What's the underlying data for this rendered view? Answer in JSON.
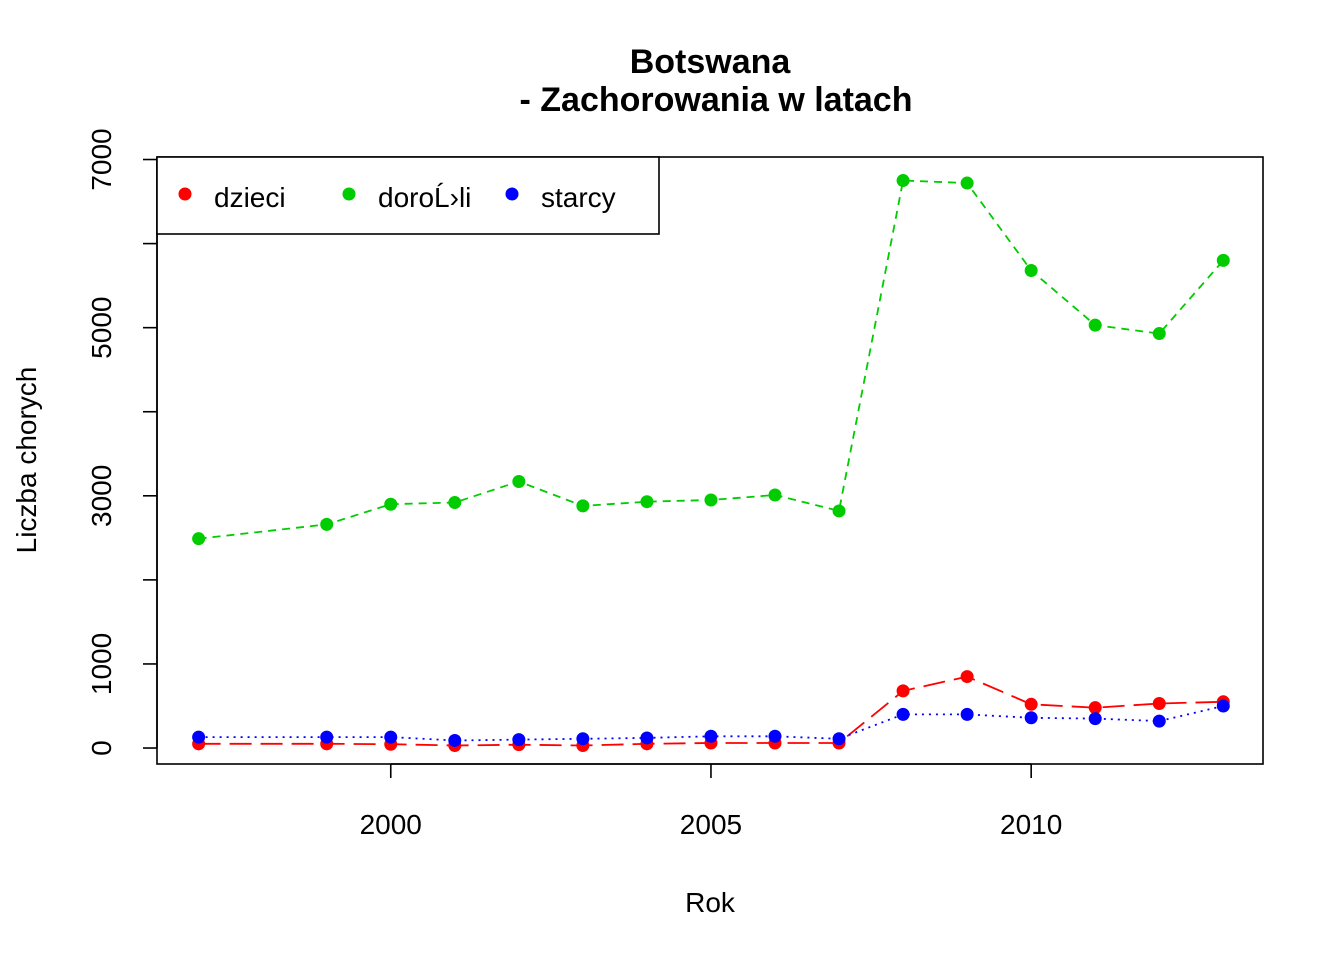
{
  "chart_data": {
    "type": "line",
    "title_line1": "Botswana",
    "title_line2": "- Zachorowania w latach",
    "xlabel": "Rok",
    "ylabel": "Liczba chorych",
    "xlim": [
      1996.35,
      2013.62
    ],
    "ylim": [
      -190,
      7030
    ],
    "x_ticks": [
      2000,
      2005,
      2010
    ],
    "y_ticks": [
      0,
      1000,
      2000,
      3000,
      4000,
      5000,
      6000,
      7000
    ],
    "y_tick_labels": [
      0,
      1000,
      3000,
      5000,
      7000
    ],
    "grid": false,
    "legend_position": "top-left",
    "x": [
      1997,
      1999,
      2000,
      2001,
      2002,
      2003,
      2004,
      2005,
      2006,
      2007,
      2008,
      2009,
      2010,
      2011,
      2012,
      2013
    ],
    "series": [
      {
        "name": "dzieci",
        "color": "#ff0000",
        "line_style": "long-dash",
        "values": [
          50,
          50,
          45,
          30,
          40,
          30,
          50,
          60,
          60,
          60,
          680,
          850,
          520,
          480,
          530,
          550
        ]
      },
      {
        "name": "doroĹ›li",
        "color": "#00cc00",
        "line_style": "dashed",
        "values": [
          2490,
          2660,
          2900,
          2920,
          3170,
          2880,
          2930,
          2950,
          3010,
          2820,
          6750,
          6720,
          5680,
          5030,
          4930,
          5800
        ]
      },
      {
        "name": "starcy",
        "color": "#0000ff",
        "line_style": "dotted",
        "values": [
          130,
          130,
          130,
          90,
          100,
          110,
          120,
          140,
          140,
          110,
          400,
          400,
          360,
          350,
          320,
          500
        ]
      }
    ]
  }
}
